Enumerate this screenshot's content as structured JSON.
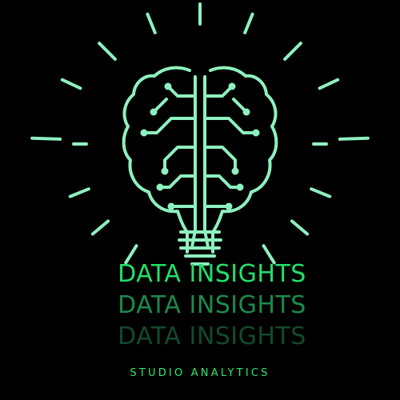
{
  "logo": {
    "icon": "brain-lightbulb-icon",
    "line_color": "#8ef0c0",
    "background_color": "#000000"
  },
  "title": {
    "text": "DATA INSIGHTS",
    "colors": [
      "#22e06a",
      "#1c8a4c",
      "#124a2c"
    ]
  },
  "tagline": {
    "text": "STUDIO ANALYTICS",
    "color": "#2ee86e"
  }
}
